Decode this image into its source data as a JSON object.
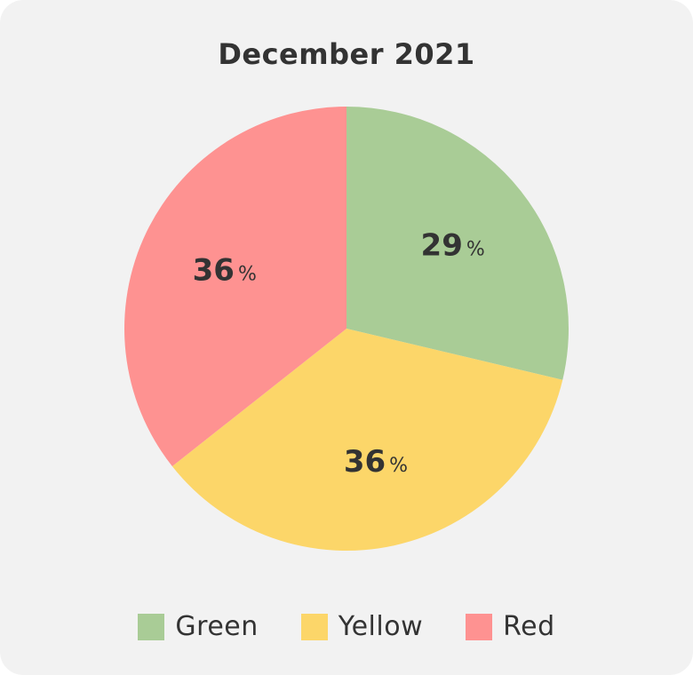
{
  "chart_data": {
    "type": "pie",
    "title": "December 2021",
    "slices": [
      {
        "label": "Green",
        "value": 29,
        "display": "29",
        "unit": "%",
        "color": "#a9cc96"
      },
      {
        "label": "Yellow",
        "value": 36,
        "display": "36",
        "unit": "%",
        "color": "#fcd669"
      },
      {
        "label": "Red",
        "value": 36,
        "display": "36",
        "unit": "%",
        "color": "#fe9291"
      }
    ],
    "legend_position": "bottom"
  }
}
